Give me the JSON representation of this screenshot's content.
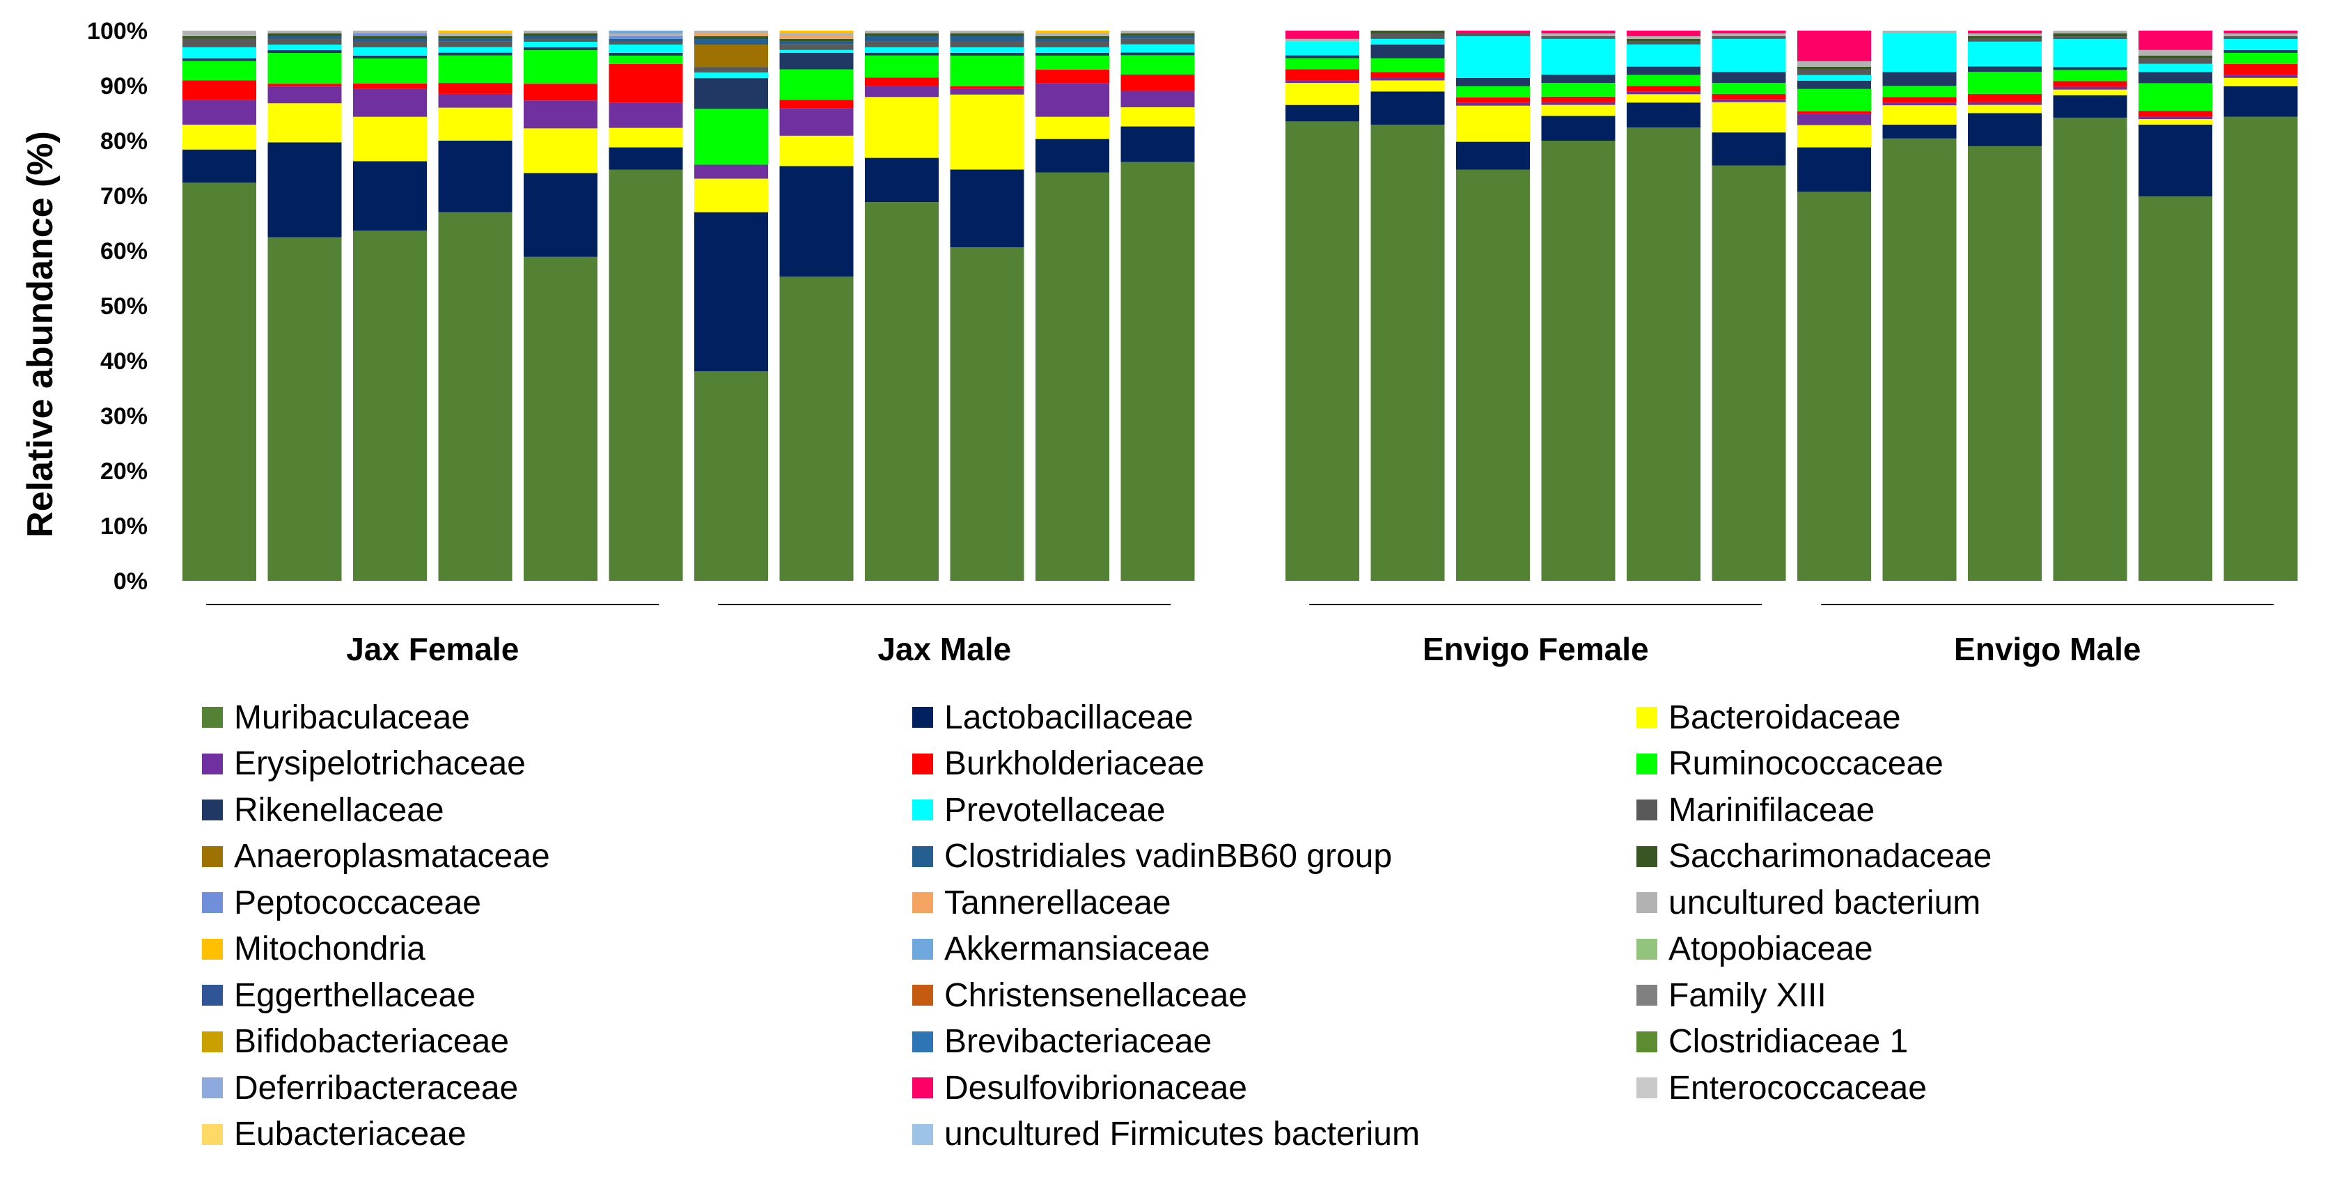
{
  "chart_data": {
    "type": "bar",
    "stacked": true,
    "ylabel": "Relative abundance (%)",
    "xlabel": "",
    "ylim": [
      0,
      100
    ],
    "yticks": [
      "0%",
      "10%",
      "20%",
      "30%",
      "40%",
      "50%",
      "60%",
      "70%",
      "80%",
      "90%",
      "100%"
    ],
    "groups": [
      {
        "label": "Jax Female",
        "bars": [
          0,
          1,
          2,
          3,
          4,
          5
        ]
      },
      {
        "label": "Jax Male",
        "bars": [
          6,
          7,
          8,
          9,
          10,
          11
        ]
      },
      {
        "label": "Envigo Female",
        "bars": [
          12,
          13,
          14,
          15,
          16,
          17
        ]
      },
      {
        "label": "Envigo Male",
        "bars": [
          18,
          19,
          20,
          21,
          22,
          23
        ]
      }
    ],
    "series": [
      {
        "name": "Muribaculaceae",
        "color": "#548235",
        "values": [
          72,
          61.5,
          63,
          67,
          58,
          74,
          37.5,
          55,
          68.5,
          60,
          73.5,
          76.5,
          83.5,
          82.5,
          74,
          80,
          82,
          75.5,
          70,
          80,
          79,
          82.5,
          69.5,
          83.5
        ]
      },
      {
        "name": "Lactobacillaceae",
        "color": "#002060",
        "values": [
          6,
          17,
          12.5,
          13,
          15,
          4,
          28.5,
          20,
          8,
          14,
          6,
          6.5,
          3,
          6,
          5,
          4.5,
          4.5,
          6,
          8,
          2.5,
          6,
          4,
          13,
          5.5
        ]
      },
      {
        "name": "Bacteroidaceae",
        "color": "#FFFF00",
        "values": [
          4.5,
          7,
          8,
          6,
          8,
          3.5,
          6,
          5.5,
          11,
          13.5,
          4,
          3.5,
          4,
          2,
          6.5,
          2,
          1.5,
          5.5,
          4,
          3.5,
          1.5,
          1,
          1,
          1.5
        ]
      },
      {
        "name": "Erysipelotrichaceae",
        "color": "#7030A0",
        "values": [
          4.5,
          3,
          5,
          2.5,
          5,
          4.5,
          2.5,
          5,
          2,
          1,
          6,
          3,
          0.5,
          0.5,
          0.5,
          0.5,
          0.5,
          0.5,
          2,
          0.5,
          0.5,
          0.5,
          0.5,
          0.5
        ]
      },
      {
        "name": "Burkholderiaceae",
        "color": "#FF0000",
        "values": [
          3.5,
          0.5,
          1,
          2,
          3,
          7,
          0,
          1.5,
          1.5,
          0.5,
          2.5,
          3,
          2,
          1,
          1,
          1,
          1,
          1,
          0.5,
          1,
          1.5,
          1,
          1,
          2
        ]
      },
      {
        "name": "Ruminococcaceae",
        "color": "#00FF00",
        "values": [
          3.5,
          5.5,
          4.5,
          5,
          6,
          1.5,
          10,
          5.5,
          4,
          5.5,
          2.5,
          3.5,
          2,
          2.5,
          2,
          2.5,
          2,
          2,
          4,
          2,
          4,
          2,
          5,
          2
        ]
      },
      {
        "name": "Rikenellaceae",
        "color": "#203864",
        "values": [
          0.5,
          0.5,
          0.5,
          0.5,
          0.5,
          0.5,
          5.5,
          3,
          0.5,
          0.5,
          0.5,
          0.5,
          0.5,
          2.5,
          1.5,
          1.5,
          1.5,
          2,
          1.5,
          2.5,
          1,
          0.5,
          2,
          0.5
        ]
      },
      {
        "name": "Prevotellaceae",
        "color": "#00FFFF",
        "values": [
          2,
          1,
          1.5,
          1,
          1,
          1.5,
          1,
          0.5,
          1,
          1,
          1,
          1.5,
          2.5,
          1,
          7.5,
          6.5,
          4,
          6,
          1,
          7,
          4.5,
          5,
          1.5,
          2
        ]
      },
      {
        "name": "Marinifilaceae",
        "color": "#595959",
        "values": [
          1.5,
          1,
          1,
          1,
          0.5,
          0.5,
          1,
          1,
          1,
          1,
          1,
          1,
          0,
          1,
          0.5,
          0.5,
          0.5,
          0.5,
          1,
          0,
          0.5,
          0.5,
          1,
          0.5
        ]
      },
      {
        "name": "Anaeroplasmataceae",
        "color": "#9E7200",
        "values": [
          0,
          0,
          0,
          0,
          0,
          0,
          4,
          0,
          0,
          0,
          0,
          0,
          0,
          0,
          0,
          0,
          0,
          0,
          0,
          0,
          0,
          0,
          0,
          0
        ]
      },
      {
        "name": "Clostridiales vadinBB60 group",
        "color": "#255E91",
        "values": [
          0,
          0.5,
          0.5,
          0.5,
          0.5,
          0.5,
          1,
          0.5,
          1,
          1,
          0.5,
          0.5,
          0,
          0,
          0,
          0,
          0,
          0,
          0,
          0,
          0,
          0,
          0,
          0
        ]
      },
      {
        "name": "Saccharimonadaceae",
        "color": "#375623",
        "values": [
          0.5,
          0.5,
          0.5,
          0.5,
          0.5,
          0,
          0.5,
          0.5,
          0.5,
          0.5,
          0.5,
          0.5,
          0,
          0.5,
          0,
          0,
          0.5,
          0,
          0.5,
          0,
          0.5,
          0.5,
          0.5,
          0
        ]
      },
      {
        "name": "Peptococcaceae",
        "color": "#6F8FDB",
        "values": [
          0,
          0,
          0.5,
          0,
          0,
          0.5,
          0,
          0,
          0,
          0,
          0,
          0,
          0,
          0,
          0,
          0,
          0,
          0,
          0,
          0,
          0,
          0,
          0,
          0
        ]
      },
      {
        "name": "Tannerellaceae",
        "color": "#F4A460",
        "values": [
          0,
          0,
          0,
          0,
          0,
          0,
          0.5,
          0.5,
          0,
          0,
          0,
          0,
          0,
          0,
          0,
          0,
          0,
          0,
          0,
          0,
          0,
          0,
          0,
          0
        ]
      },
      {
        "name": "uncultured bacterium",
        "color": "#B2B2B2",
        "values": [
          1,
          0.5,
          0.5,
          0.5,
          0.5,
          0.5,
          0.5,
          0.5,
          0.5,
          0.5,
          0.5,
          0.5,
          0.5,
          0,
          0,
          0.5,
          0.5,
          0.5,
          1,
          0.5,
          0.5,
          0.5,
          1,
          0.5
        ]
      },
      {
        "name": "Mitochondria",
        "color": "#FFC000",
        "values": [
          0,
          0,
          0,
          0.5,
          0,
          0,
          0,
          0.5,
          0,
          0,
          0.5,
          0,
          0,
          0,
          0,
          0,
          0,
          0,
          0,
          0,
          0,
          0,
          0,
          0
        ]
      },
      {
        "name": "Akkermansiaceae",
        "color": "#6FA8DC",
        "values": [
          0,
          0,
          0,
          0,
          0,
          0.5,
          0,
          0,
          0,
          0,
          0,
          0,
          0,
          0,
          0,
          0,
          0,
          0,
          0,
          0,
          0,
          0,
          0,
          0
        ]
      },
      {
        "name": "Atopobiaceae",
        "color": "#93C47D",
        "values": [
          0,
          0,
          0,
          0,
          0,
          0,
          0,
          0,
          0,
          0,
          0,
          0,
          0,
          0,
          0,
          0,
          0,
          0,
          0,
          0,
          0,
          0,
          0,
          0
        ]
      },
      {
        "name": "Eggerthellaceae",
        "color": "#2F5597",
        "values": [
          0,
          0,
          0,
          0,
          0,
          0,
          0,
          0,
          0,
          0,
          0,
          0,
          0,
          0,
          0,
          0,
          0,
          0,
          0,
          0,
          0,
          0,
          0,
          0
        ]
      },
      {
        "name": "Christensenellaceae",
        "color": "#C55A11",
        "values": [
          0,
          0,
          0,
          0,
          0,
          0,
          0,
          0,
          0,
          0,
          0,
          0,
          0,
          0,
          0,
          0,
          0,
          0,
          0,
          0,
          0,
          0,
          0,
          0
        ]
      },
      {
        "name": "Family XIII",
        "color": "#808080",
        "values": [
          0,
          0,
          0,
          0,
          0,
          0,
          0,
          0,
          0,
          0,
          0,
          0,
          0,
          0,
          0,
          0,
          0,
          0,
          0,
          0,
          0,
          0,
          0,
          0
        ]
      },
      {
        "name": "Bifidobacteriaceae",
        "color": "#C9A000",
        "values": [
          0,
          0,
          0,
          0,
          0,
          0,
          0,
          0,
          0,
          0,
          0,
          0,
          0,
          0,
          0,
          0,
          0,
          0,
          0,
          0,
          0,
          0,
          0,
          0
        ]
      },
      {
        "name": "Brevibacteriaceae",
        "color": "#2E75B6",
        "values": [
          0,
          0,
          0,
          0,
          0,
          0,
          0,
          0,
          0,
          0,
          0,
          0,
          0,
          0,
          0,
          0,
          0,
          0,
          0,
          0,
          0,
          0,
          0,
          0
        ]
      },
      {
        "name": "Clostridiaceae 1",
        "color": "#5B8C32",
        "values": [
          0,
          0,
          0,
          0,
          0,
          0,
          0,
          0,
          0,
          0,
          0,
          0,
          0,
          0,
          0,
          0,
          0,
          0,
          0,
          0,
          0,
          0,
          0,
          0
        ]
      },
      {
        "name": "Deferribacteraceae",
        "color": "#8EA9DB",
        "values": [
          0,
          0,
          0,
          0,
          0,
          0,
          0,
          0,
          0,
          0,
          0,
          0,
          0,
          0,
          0,
          0,
          0,
          0,
          0,
          0,
          0,
          0,
          0,
          0
        ]
      },
      {
        "name": "Desulfovibrionaceae",
        "color": "#FF0066",
        "values": [
          0,
          0,
          0,
          0,
          0,
          0,
          0,
          0,
          0,
          0,
          0,
          0,
          1.5,
          0,
          0.5,
          0.5,
          1,
          0.5,
          5.5,
          0,
          0.5,
          0,
          3.5,
          0.5
        ]
      },
      {
        "name": "Enterococcaceae",
        "color": "#C8C8C8",
        "values": [
          0,
          0,
          0,
          0,
          0,
          0,
          0,
          0,
          0,
          0,
          0,
          0,
          0,
          0,
          0,
          0,
          0,
          0,
          0,
          0,
          0,
          0,
          0,
          0
        ]
      },
      {
        "name": "Eubacteriaceae",
        "color": "#FFD966",
        "values": [
          0,
          0,
          0,
          0,
          0,
          0,
          0,
          0,
          0,
          0,
          0,
          0,
          0,
          0,
          0,
          0,
          0,
          0,
          0,
          0,
          0,
          0,
          0,
          0
        ]
      },
      {
        "name": "uncultured Firmicutes bacterium",
        "color": "#9DC3E6",
        "values": [
          0,
          0,
          0,
          0,
          0,
          0,
          0,
          0,
          0,
          0,
          0,
          0,
          0,
          0,
          0,
          0,
          0,
          0,
          0,
          0,
          0,
          0,
          0,
          0
        ]
      }
    ]
  }
}
